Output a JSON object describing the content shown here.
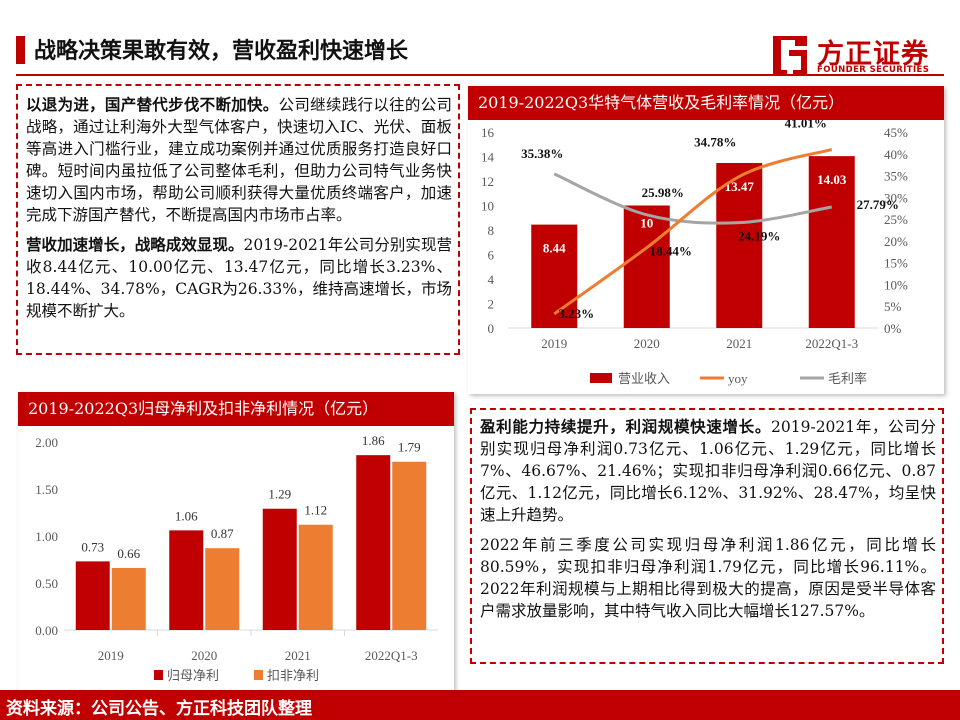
{
  "page": {
    "title": "战略决策果敢有效，营收盈利快速增长",
    "accent_color": "#c00000"
  },
  "logo": {
    "cn": "方正证券",
    "en": "FOUNDER SECURITIES"
  },
  "left_text": {
    "p1_bold": "以退为进，国产替代步伐不断加快。",
    "p1_body": "公司继续践行以往的公司战略，通过让利海外大型气体客户，快速切入IC、光伏、面板等高进入门槛行业，建立成功案例并通过优质服务打造良好口碑。短时间内虽拉低了公司整体毛利，但助力公司特气业务快速切入国内市场，帮助公司顺利获得大量优质终端客户，加速完成下游国产替代，不断提高国内市场市占率。",
    "p2_bold": "营收加速增长，战略成效显现。",
    "p2_body": "2019-2021年公司分别实现营收8.44亿元、10.00亿元、13.47亿元，同比增长3.23%、18.44%、34.78%，CAGR为26.33%，维持高速增长，市场规模不断扩大。"
  },
  "right_text": {
    "p1_bold": "盈利能力持续提升，利润规模快速增长。",
    "p1_body": "2019-2021年，公司分别实现归母净利润0.73亿元、1.06亿元、1.29亿元，同比增长7%、46.67%、21.46%；实现扣非归母净利润0.66亿元、0.87亿元、1.12亿元，同比增长6.12%、31.92%、28.47%，均呈快速上升趋势。",
    "p2_body": "2022年前三季度公司实现归母净利润1.86亿元，同比增长80.59%，实现扣非归母净利润1.79亿元，同比增长96.11%。2022年利润规模与上期相比得到极大的提高，原因是受半导体客户需求放量影响，其中特气收入同比大幅增长127.57%。"
  },
  "footer": {
    "text": "资料来源：公司公告、方正科技团队整理"
  },
  "chart_data": [
    {
      "type": "bar+line",
      "title": "2019-2022Q3华特气体营收及毛利率情况（亿元）",
      "categories": [
        "2019",
        "2020",
        "2021",
        "2022Q1-3"
      ],
      "ylim_left": [
        0,
        16
      ],
      "yticks_left": [
        "0",
        "2",
        "4",
        "6",
        "8",
        "10",
        "12",
        "14",
        "16"
      ],
      "ylim_right": [
        0,
        45
      ],
      "yticks_right": [
        "0%",
        "5%",
        "10%",
        "15%",
        "20%",
        "25%",
        "30%",
        "35%",
        "40%",
        "45%"
      ],
      "series": [
        {
          "name": "营业收入",
          "kind": "bar",
          "axis": "left",
          "color": "#c00000",
          "values": [
            8.44,
            10.0,
            13.47,
            14.03
          ],
          "labels": [
            "8.44",
            "10",
            "13.47",
            "14.03"
          ]
        },
        {
          "name": "yoy",
          "kind": "line",
          "axis": "right",
          "color": "#ed7d31",
          "values": [
            3.23,
            18.44,
            34.78,
            41.01
          ],
          "labels": [
            "3.23%",
            "18.44%",
            "34.78%",
            "41.01%"
          ]
        },
        {
          "name": "毛利率",
          "kind": "line",
          "axis": "right",
          "color": "#a5a5a5",
          "values": [
            35.38,
            25.98,
            24.19,
            27.79
          ],
          "labels": [
            "35.38%",
            "25.98%",
            "24.19%",
            "27.79%"
          ]
        }
      ],
      "legend_position": "bottom",
      "grid": false
    },
    {
      "type": "bar",
      "title": "2019-2022Q3归母净利及扣非净利情况（亿元）",
      "categories": [
        "2019",
        "2020",
        "2021",
        "2022Q1-3"
      ],
      "ylim": [
        0,
        2.0
      ],
      "yticks": [
        "0.00",
        "0.50",
        "1.00",
        "1.50",
        "2.00"
      ],
      "series": [
        {
          "name": "归母净利",
          "color": "#c00000",
          "values": [
            0.73,
            1.06,
            1.29,
            1.86
          ],
          "labels": [
            "0.73",
            "1.06",
            "1.29",
            "1.86"
          ]
        },
        {
          "name": "扣非净利",
          "color": "#ed7d31",
          "values": [
            0.66,
            0.87,
            1.12,
            1.79
          ],
          "labels": [
            "0.66",
            "0.87",
            "1.12",
            "1.79"
          ]
        }
      ],
      "legend_position": "bottom",
      "grid": false
    }
  ]
}
